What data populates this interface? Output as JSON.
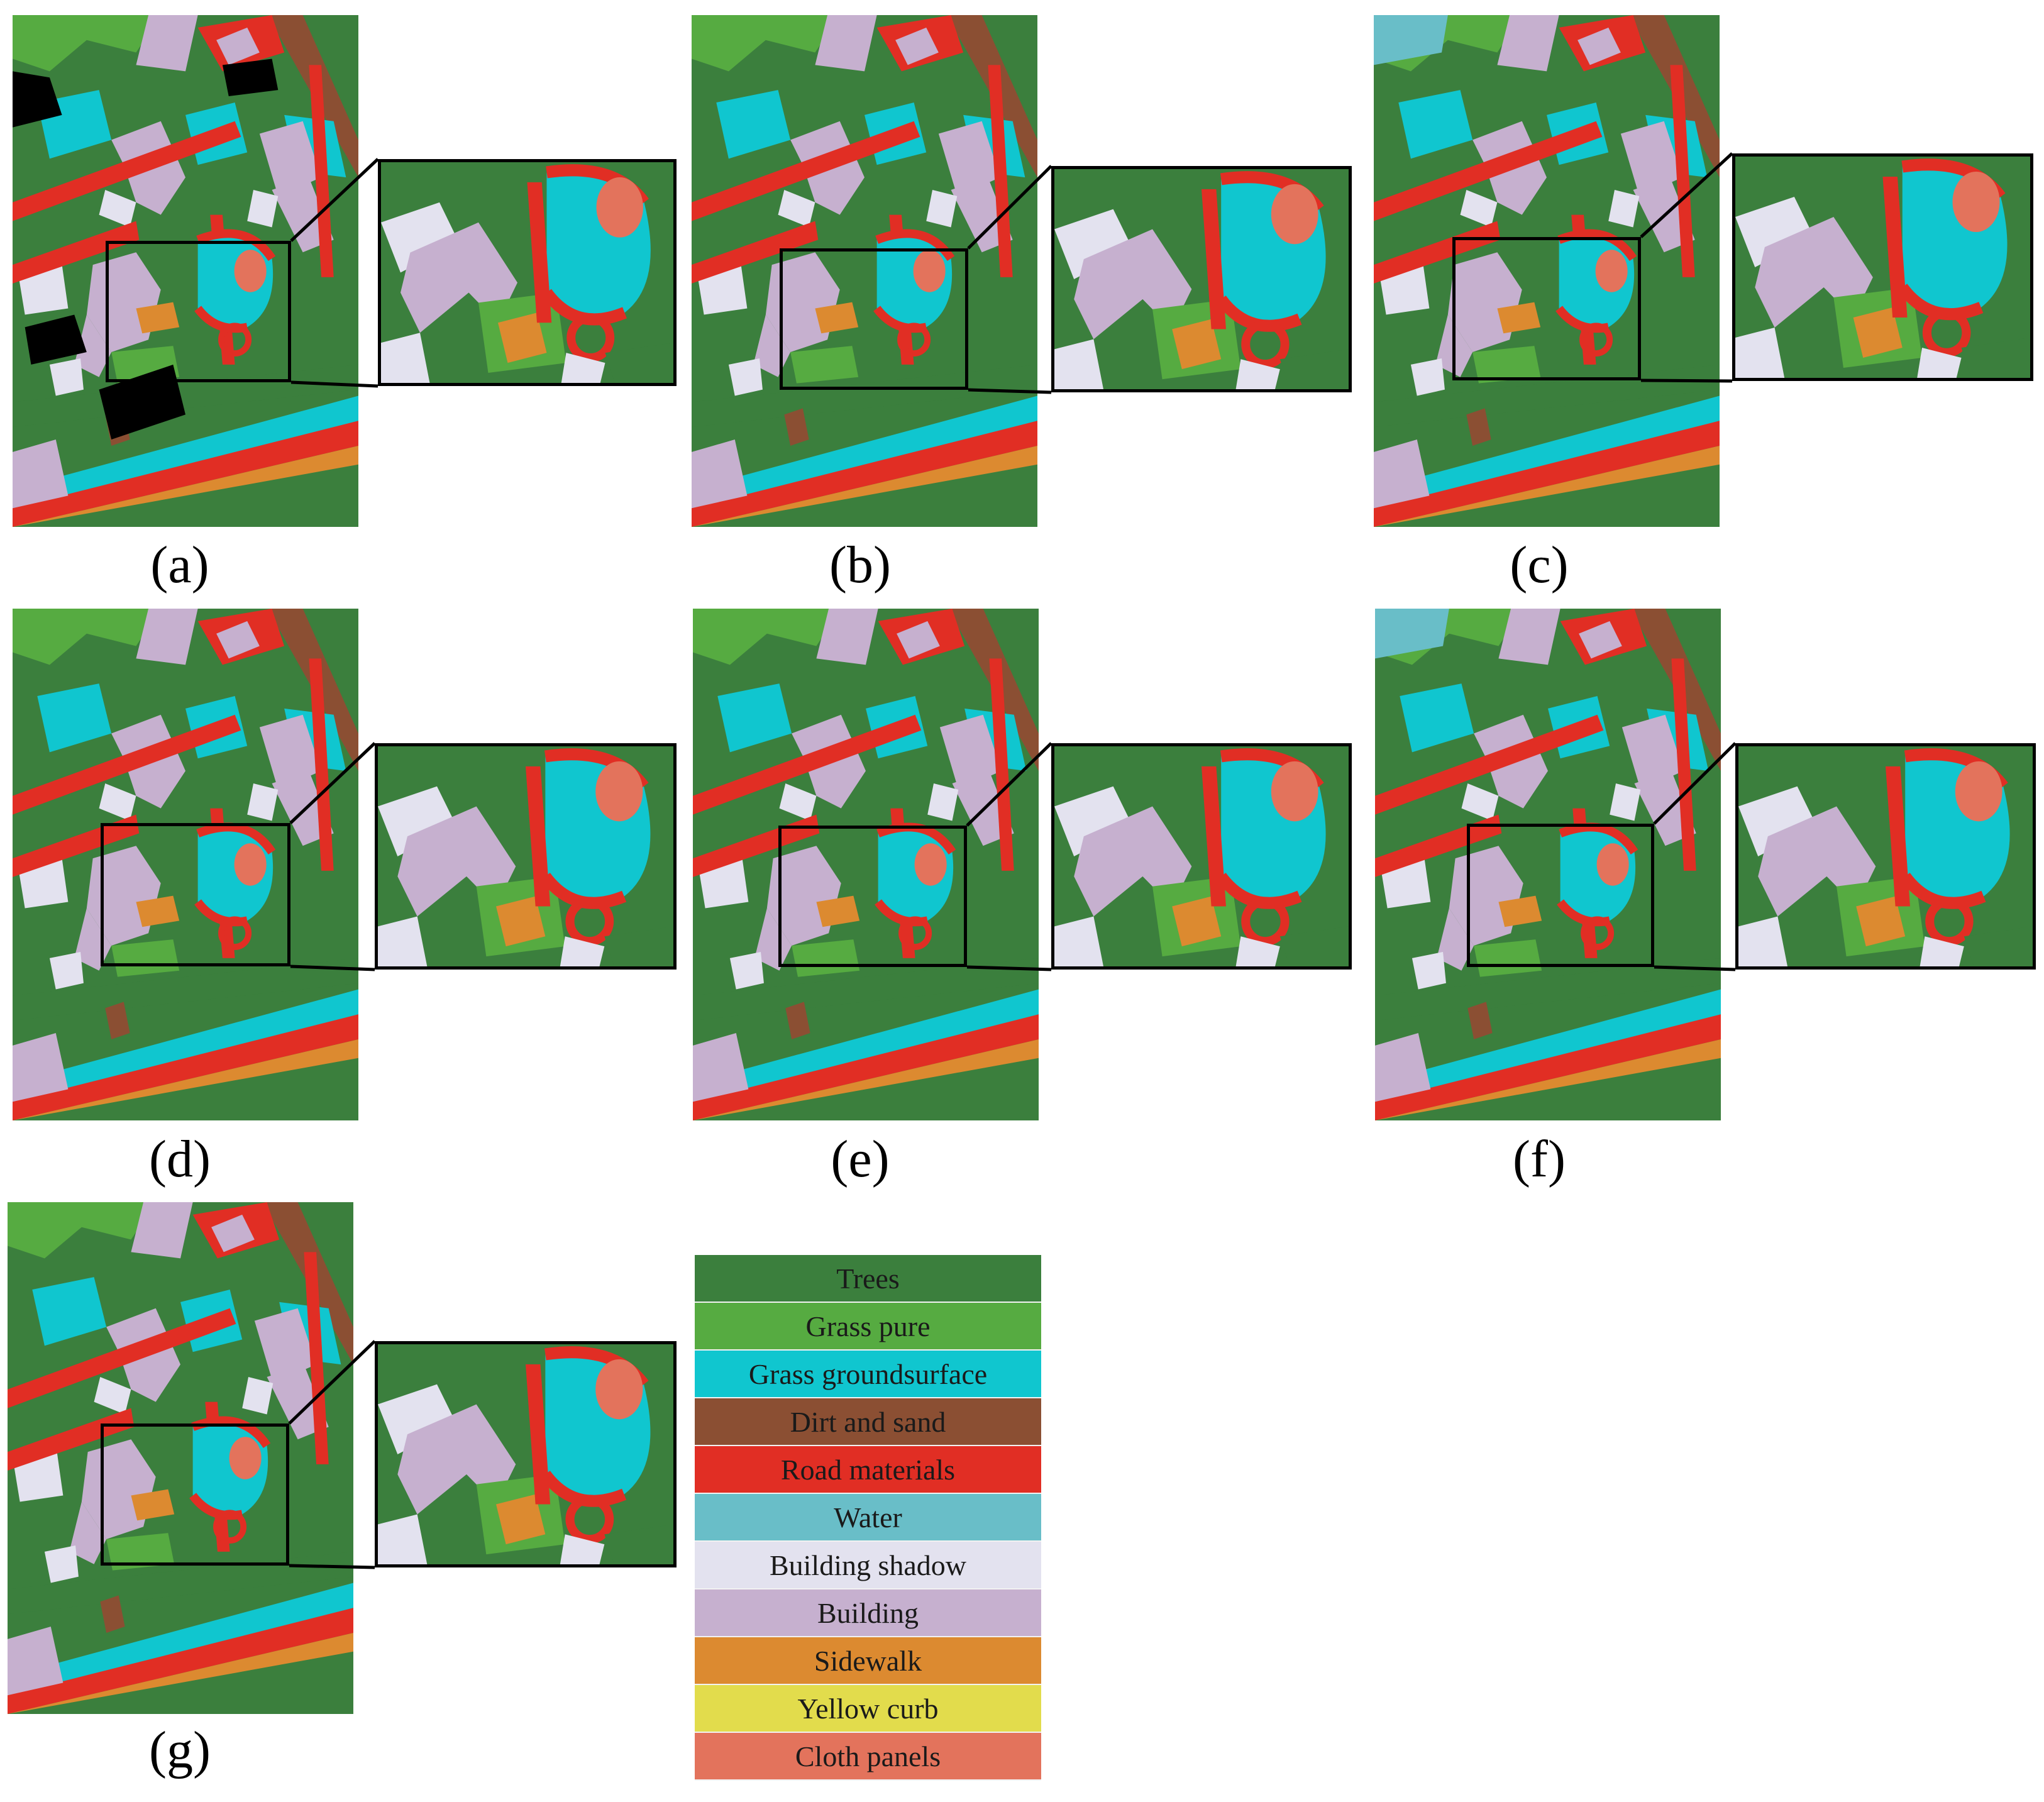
{
  "panels": [
    {
      "id": "a",
      "label": "(a)"
    },
    {
      "id": "b",
      "label": "(b)"
    },
    {
      "id": "c",
      "label": "(c)"
    },
    {
      "id": "d",
      "label": "(d)"
    },
    {
      "id": "e",
      "label": "(e)"
    },
    {
      "id": "f",
      "label": "(f)"
    },
    {
      "id": "g",
      "label": "(g)"
    }
  ],
  "legend": {
    "items": [
      {
        "label": "Trees",
        "color": "#3b7f3d"
      },
      {
        "label": "Grass pure",
        "color": "#56ab41"
      },
      {
        "label": "Grass groundsurface",
        "color": "#10c6cf"
      },
      {
        "label": "Dirt and sand",
        "color": "#8b4f33"
      },
      {
        "label": "Road materials",
        "color": "#e12e24"
      },
      {
        "label": "Water",
        "color": "#69bec8"
      },
      {
        "label": "Building shadow",
        "color": "#e3e2ef"
      },
      {
        "label": "Building",
        "color": "#c6b0cf"
      },
      {
        "label": "Sidewalk",
        "color": "#dc8a30"
      },
      {
        "label": "Yellow curb",
        "color": "#e2dc4c"
      },
      {
        "label": "Cloth panels",
        "color": "#e3735c"
      }
    ]
  }
}
